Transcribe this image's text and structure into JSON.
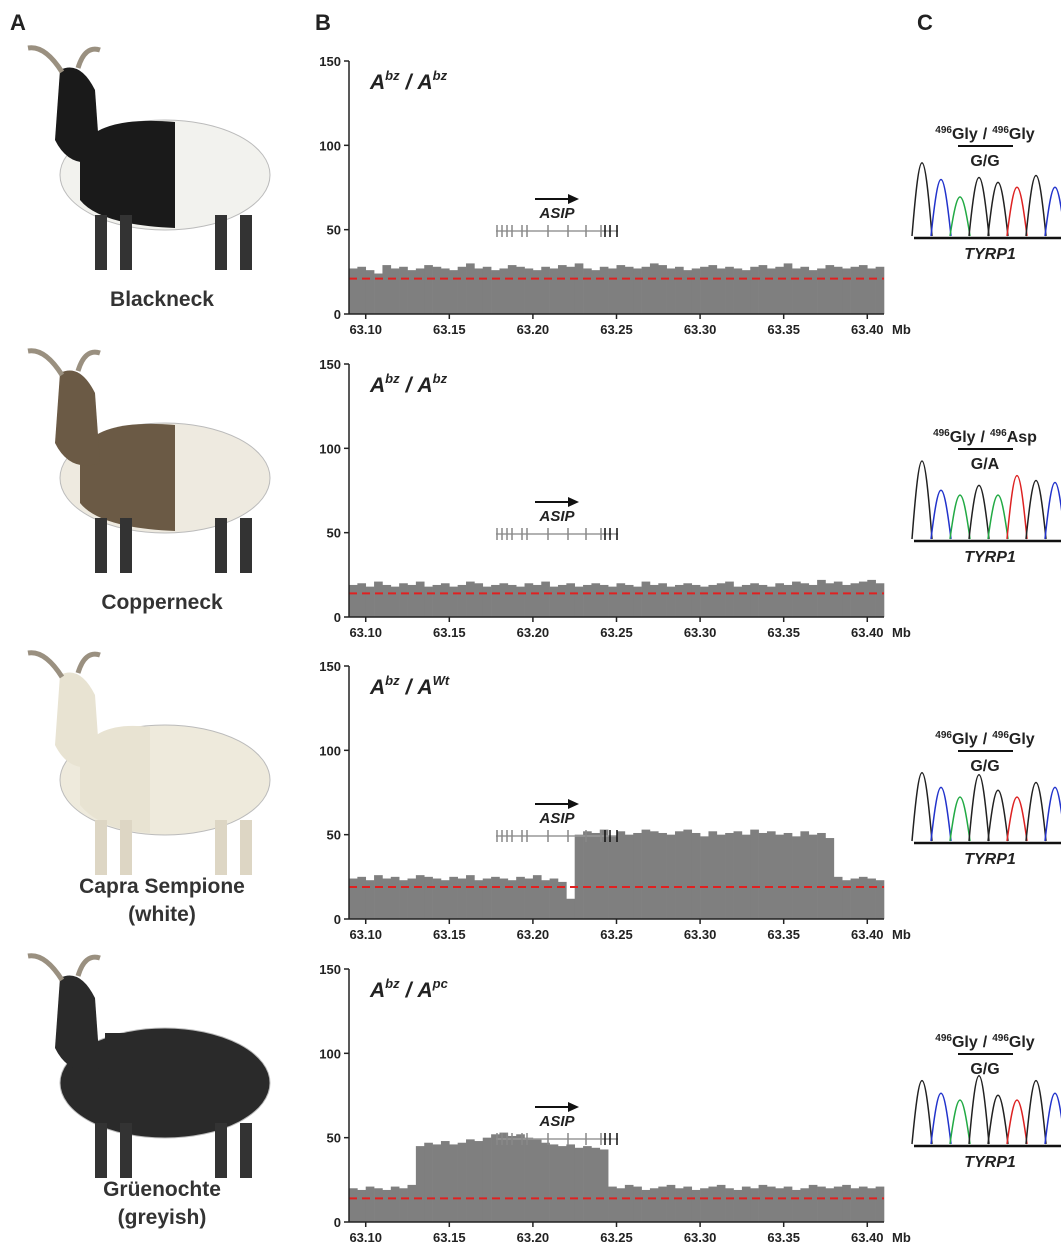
{
  "panel_labels": [
    "A",
    "B",
    "C"
  ],
  "goats": [
    {
      "name": [
        "Blackneck"
      ]
    },
    {
      "name": [
        "Copperneck"
      ]
    },
    {
      "name": [
        "Capra Sempione",
        "(white)"
      ]
    },
    {
      "name": [
        "Grüenochte",
        "(greyish)"
      ]
    }
  ],
  "chart_data": [
    {
      "type": "histogram",
      "color": "#7f7f7f",
      "x_unit": "Mb",
      "gene": "ASIP",
      "genotype": {
        "alleles": [
          {
            "base": "A",
            "sup": "bz"
          },
          {
            "base": "A",
            "sup": "bz"
          }
        ],
        "separator": "/"
      },
      "reference_line": {
        "value": 21,
        "color": "#e02020"
      },
      "xlim": [
        63.09,
        63.41
      ],
      "ylim": [
        0,
        150
      ],
      "yticks": [
        0,
        50,
        100,
        150
      ],
      "xticks": [
        {
          "value": 63.1,
          "label": "63.10"
        },
        63.15,
        {
          "value": 63.2,
          "label": "63.20"
        },
        63.25,
        {
          "value": 63.3,
          "label": "63.30"
        },
        63.35,
        {
          "value": 63.4,
          "label": "63.40"
        }
      ],
      "bins": [
        63.09,
        63.095,
        63.1,
        63.105,
        63.11,
        63.115,
        63.12,
        63.125,
        63.13,
        63.135,
        63.14,
        63.145,
        63.15,
        63.155,
        63.16,
        63.165,
        63.17,
        63.175,
        63.18,
        63.185,
        63.19,
        63.195,
        63.2,
        63.205,
        63.21,
        63.215,
        63.22,
        63.225,
        63.23,
        63.235,
        63.24,
        63.245,
        63.25,
        63.255,
        63.26,
        63.265,
        63.27,
        63.275,
        63.28,
        63.285,
        63.29,
        63.295,
        63.3,
        63.305,
        63.31,
        63.315,
        63.32,
        63.325,
        63.33,
        63.335,
        63.34,
        63.345,
        63.35,
        63.355,
        63.36,
        63.365,
        63.37,
        63.375,
        63.38,
        63.385,
        63.39,
        63.395,
        63.4,
        63.405,
        63.41
      ],
      "values": [
        27,
        28,
        26,
        24,
        29,
        27,
        28,
        26,
        27,
        29,
        28,
        27,
        26,
        28,
        30,
        27,
        28,
        26,
        27,
        29,
        28,
        27,
        26,
        28,
        27,
        29,
        28,
        30,
        27,
        26,
        28,
        27,
        29,
        28,
        27,
        28,
        30,
        29,
        27,
        28,
        26,
        27,
        28,
        29,
        27,
        28,
        27,
        26,
        28,
        29,
        27,
        28,
        30,
        27,
        28,
        26,
        27,
        29,
        28,
        27,
        28,
        29,
        27,
        28
      ]
    },
    {
      "type": "histogram",
      "color": "#7f7f7f",
      "x_unit": "Mb",
      "gene": "ASIP",
      "genotype": {
        "alleles": [
          {
            "base": "A",
            "sup": "bz"
          },
          {
            "base": "A",
            "sup": "bz"
          }
        ],
        "separator": "/"
      },
      "reference_line": {
        "value": 14,
        "color": "#e02020"
      },
      "xlim": [
        63.09,
        63.41
      ],
      "ylim": [
        0,
        150
      ],
      "yticks": [
        0,
        50,
        100,
        150
      ],
      "xticks": [
        {
          "value": 63.1,
          "label": "63.10"
        },
        63.15,
        {
          "value": 63.2,
          "label": "63.20"
        },
        63.25,
        {
          "value": 63.3,
          "label": "63.30"
        },
        63.35,
        {
          "value": 63.4,
          "label": "63.40"
        }
      ],
      "bins": [
        63.09,
        63.095,
        63.1,
        63.105,
        63.11,
        63.115,
        63.12,
        63.125,
        63.13,
        63.135,
        63.14,
        63.145,
        63.15,
        63.155,
        63.16,
        63.165,
        63.17,
        63.175,
        63.18,
        63.185,
        63.19,
        63.195,
        63.2,
        63.205,
        63.21,
        63.215,
        63.22,
        63.225,
        63.23,
        63.235,
        63.24,
        63.245,
        63.25,
        63.255,
        63.26,
        63.265,
        63.27,
        63.275,
        63.28,
        63.285,
        63.29,
        63.295,
        63.3,
        63.305,
        63.31,
        63.315,
        63.32,
        63.325,
        63.33,
        63.335,
        63.34,
        63.345,
        63.35,
        63.355,
        63.36,
        63.365,
        63.37,
        63.375,
        63.38,
        63.385,
        63.39,
        63.395,
        63.4,
        63.405,
        63.41
      ],
      "values": [
        19,
        20,
        18,
        21,
        19,
        18,
        20,
        19,
        21,
        18,
        19,
        20,
        18,
        19,
        21,
        20,
        18,
        19,
        20,
        19,
        18,
        20,
        19,
        21,
        18,
        19,
        20,
        18,
        19,
        20,
        19,
        18,
        20,
        19,
        18,
        21,
        19,
        20,
        18,
        19,
        20,
        19,
        18,
        19,
        20,
        21,
        18,
        19,
        20,
        19,
        18,
        20,
        19,
        21,
        20,
        19,
        22,
        20,
        21,
        19,
        20,
        21,
        22,
        20
      ]
    },
    {
      "type": "histogram",
      "color": "#7f7f7f",
      "x_unit": "Mb",
      "gene": "ASIP",
      "genotype": {
        "alleles": [
          {
            "base": "A",
            "sup": "bz"
          },
          {
            "base": "A",
            "sup": "Wt"
          }
        ],
        "separator": "/"
      },
      "reference_line": {
        "value": 19,
        "color": "#e02020"
      },
      "xlim": [
        63.09,
        63.41
      ],
      "ylim": [
        0,
        150
      ],
      "yticks": [
        0,
        50,
        100,
        150
      ],
      "xticks": [
        {
          "value": 63.1,
          "label": "63.10"
        },
        63.15,
        {
          "value": 63.2,
          "label": "63.20"
        },
        63.25,
        {
          "value": 63.3,
          "label": "63.30"
        },
        63.35,
        {
          "value": 63.4,
          "label": "63.40"
        }
      ],
      "bins": [
        63.09,
        63.095,
        63.1,
        63.105,
        63.11,
        63.115,
        63.12,
        63.125,
        63.13,
        63.135,
        63.14,
        63.145,
        63.15,
        63.155,
        63.16,
        63.165,
        63.17,
        63.175,
        63.18,
        63.185,
        63.19,
        63.195,
        63.2,
        63.205,
        63.21,
        63.215,
        63.22,
        63.225,
        63.23,
        63.235,
        63.24,
        63.245,
        63.25,
        63.255,
        63.26,
        63.265,
        63.27,
        63.275,
        63.28,
        63.285,
        63.29,
        63.295,
        63.3,
        63.305,
        63.31,
        63.315,
        63.32,
        63.325,
        63.33,
        63.335,
        63.34,
        63.345,
        63.35,
        63.355,
        63.36,
        63.365,
        63.37,
        63.375,
        63.38,
        63.385,
        63.39,
        63.395,
        63.4,
        63.405,
        63.41
      ],
      "values": [
        24,
        25,
        23,
        26,
        24,
        25,
        23,
        24,
        26,
        25,
        24,
        23,
        25,
        24,
        26,
        23,
        24,
        25,
        24,
        23,
        25,
        24,
        26,
        23,
        24,
        22,
        12,
        50,
        52,
        51,
        53,
        49,
        52,
        50,
        51,
        53,
        52,
        51,
        50,
        52,
        53,
        51,
        49,
        52,
        50,
        51,
        52,
        50,
        53,
        51,
        52,
        50,
        51,
        49,
        52,
        50,
        51,
        48,
        25,
        23,
        24,
        25,
        24,
        23
      ]
    },
    {
      "type": "histogram",
      "color": "#7f7f7f",
      "x_unit": "Mb",
      "gene": "ASIP",
      "genotype": {
        "alleles": [
          {
            "base": "A",
            "sup": "bz"
          },
          {
            "base": "A",
            "sup": "pc"
          }
        ],
        "separator": "/"
      },
      "reference_line": {
        "value": 14,
        "color": "#e02020"
      },
      "xlim": [
        63.09,
        63.41
      ],
      "ylim": [
        0,
        150
      ],
      "yticks": [
        0,
        50,
        100,
        150
      ],
      "xticks": [
        {
          "value": 63.1,
          "label": "63.10"
        },
        63.15,
        {
          "value": 63.2,
          "label": "63.20"
        },
        63.25,
        {
          "value": 63.3,
          "label": "63.30"
        },
        63.35,
        {
          "value": 63.4,
          "label": "63.40"
        }
      ],
      "bins": [
        63.09,
        63.095,
        63.1,
        63.105,
        63.11,
        63.115,
        63.12,
        63.125,
        63.13,
        63.135,
        63.14,
        63.145,
        63.15,
        63.155,
        63.16,
        63.165,
        63.17,
        63.175,
        63.18,
        63.185,
        63.19,
        63.195,
        63.2,
        63.205,
        63.21,
        63.215,
        63.22,
        63.225,
        63.23,
        63.235,
        63.24,
        63.245,
        63.25,
        63.255,
        63.26,
        63.265,
        63.27,
        63.275,
        63.28,
        63.285,
        63.29,
        63.295,
        63.3,
        63.305,
        63.31,
        63.315,
        63.32,
        63.325,
        63.33,
        63.335,
        63.34,
        63.345,
        63.35,
        63.355,
        63.36,
        63.365,
        63.37,
        63.375,
        63.38,
        63.385,
        63.39,
        63.395,
        63.4,
        63.405,
        63.41
      ],
      "values": [
        20,
        19,
        21,
        20,
        19,
        21,
        20,
        22,
        45,
        47,
        46,
        48,
        46,
        47,
        49,
        48,
        50,
        52,
        53,
        51,
        52,
        50,
        49,
        47,
        46,
        45,
        46,
        44,
        45,
        44,
        43,
        21,
        20,
        22,
        21,
        19,
        20,
        21,
        22,
        20,
        21,
        19,
        20,
        21,
        22,
        20,
        19,
        21,
        20,
        22,
        21,
        20,
        21,
        19,
        20,
        22,
        21,
        20,
        21,
        22,
        20,
        21,
        20,
        21
      ]
    }
  ],
  "genotyping": [
    {
      "protein": [
        {
          "position": "496",
          "residue": "Gly"
        },
        {
          "position": "496",
          "residue": "Gly"
        }
      ],
      "separator": "/",
      "genotype": "G/G",
      "gene": "TYRP1"
    },
    {
      "protein": [
        {
          "position": "496",
          "residue": "Gly"
        },
        {
          "position": "496",
          "residue": "Asp"
        }
      ],
      "separator": "/",
      "genotype": "G/A",
      "gene": "TYRP1"
    },
    {
      "protein": [
        {
          "position": "496",
          "residue": "Gly"
        },
        {
          "position": "496",
          "residue": "Gly"
        }
      ],
      "separator": "/",
      "genotype": "G/G",
      "gene": "TYRP1"
    },
    {
      "protein": [
        {
          "position": "496",
          "residue": "Gly"
        },
        {
          "position": "496",
          "residue": "Gly"
        }
      ],
      "separator": "/",
      "genotype": "G/G",
      "gene": "TYRP1"
    }
  ]
}
